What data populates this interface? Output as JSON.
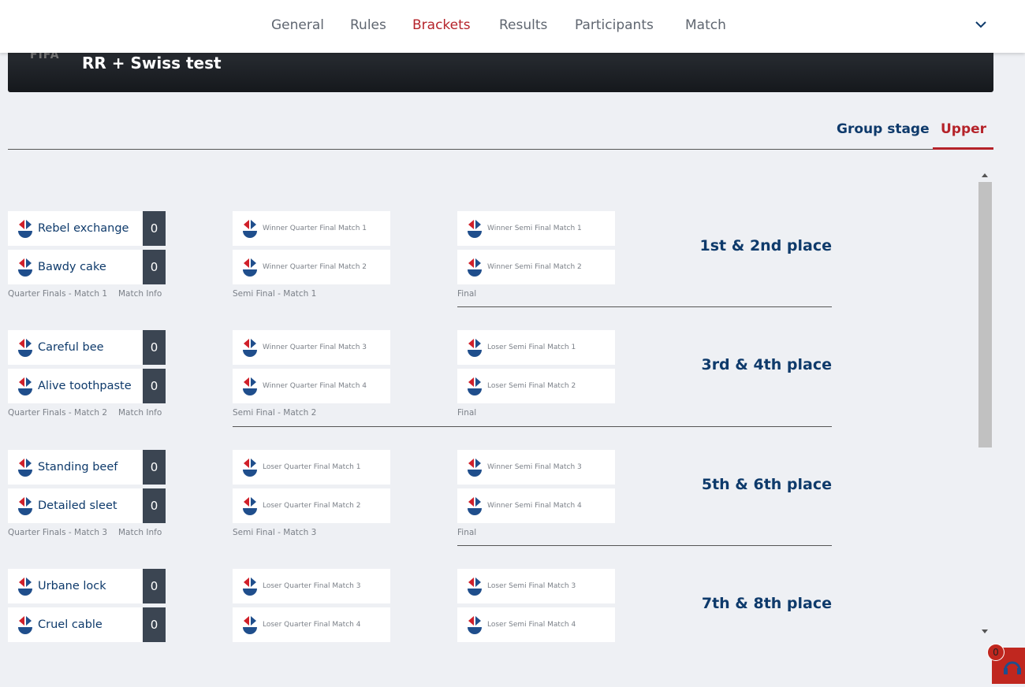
{
  "nav": {
    "tabs": [
      "General",
      "Rules",
      "Brackets",
      "Results",
      "Participants",
      "Match"
    ],
    "active": 2
  },
  "header": {
    "logo": "FIFA",
    "title": "RR + Swiss test"
  },
  "stage_tabs": {
    "tabs": [
      "Group stage",
      "Upper"
    ],
    "active": 1
  },
  "rounds": [
    {
      "quarter": {
        "teams": [
          {
            "name": "Rebel exchange",
            "score": 0
          },
          {
            "name": "Bawdy cake",
            "score": 0
          }
        ],
        "label": "Quarter Finals - Match 1",
        "info": "Match Info"
      },
      "semi": {
        "slots": [
          "Winner Quarter Final Match 1",
          "Winner Quarter Final Match 2"
        ],
        "label": "Semi Final - Match 1"
      },
      "final": {
        "slots": [
          "Winner Semi Final Match 1",
          "Winner Semi Final Match 2"
        ],
        "label": "Final"
      },
      "place": "1st & 2nd place"
    },
    {
      "quarter": {
        "teams": [
          {
            "name": "Careful bee",
            "score": 0
          },
          {
            "name": "Alive toothpaste",
            "score": 0
          }
        ],
        "label": "Quarter Finals - Match 2",
        "info": "Match Info"
      },
      "semi": {
        "slots": [
          "Winner Quarter Final Match 3",
          "Winner Quarter Final Match 4"
        ],
        "label": "Semi Final - Match 2"
      },
      "final": {
        "slots": [
          "Loser Semi Final Match 1",
          "Loser Semi Final Match 2"
        ],
        "label": "Final"
      },
      "place": "3rd & 4th place"
    },
    {
      "quarter": {
        "teams": [
          {
            "name": "Standing beef",
            "score": 0
          },
          {
            "name": "Detailed sleet",
            "score": 0
          }
        ],
        "label": "Quarter Finals - Match 3",
        "info": "Match Info"
      },
      "semi": {
        "slots": [
          "Loser Quarter Final Match 1",
          "Loser Quarter Final Match 2"
        ],
        "label": "Semi Final - Match 3"
      },
      "final": {
        "slots": [
          "Winner Semi Final Match 3",
          "Winner Semi Final Match 4"
        ],
        "label": "Final"
      },
      "place": "5th & 6th place"
    },
    {
      "quarter": {
        "teams": [
          {
            "name": "Urbane lock",
            "score": 0
          },
          {
            "name": "Cruel cable",
            "score": 0
          }
        ]
      },
      "semi": {
        "slots": [
          "Loser Quarter Final Match 3",
          "Loser Quarter Final Match 4"
        ]
      },
      "final": {
        "slots": [
          "Loser Semi Final Match 3",
          "Loser Semi Final Match 4"
        ]
      },
      "place": "7th & 8th place"
    }
  ],
  "badge": 0
}
